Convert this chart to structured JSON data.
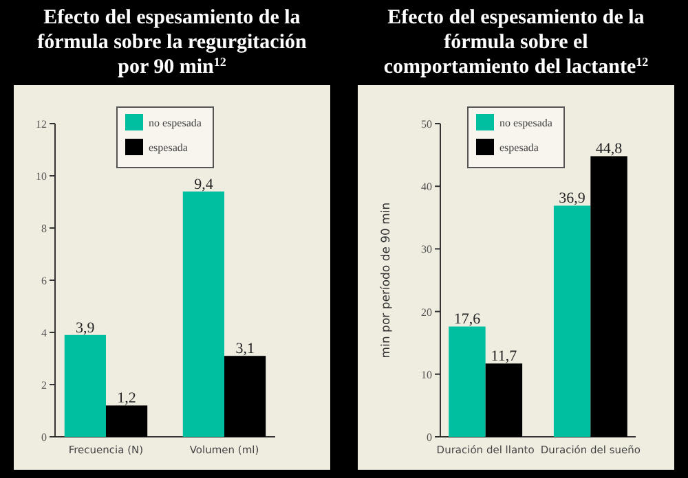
{
  "chart_data": [
    {
      "type": "bar",
      "title": "Efecto del espesamiento de la fórmula sobre la regurgitación por 90 min$^{12}$",
      "categories": [
        "Frecuencia (N)",
        "Volumen (ml)"
      ],
      "series": [
        {
          "name": "no espesada",
          "color": "#00bfa0",
          "values": [
            3.9,
            9.4
          ],
          "value_labels": [
            "3,9",
            "9,4"
          ]
        },
        {
          "name": "espesada",
          "color": "#000000",
          "values": [
            1.2,
            3.1
          ],
          "value_labels": [
            "1,2",
            "3,1"
          ]
        }
      ],
      "ylim": [
        0,
        12
      ],
      "yticks": [
        0,
        2,
        4,
        6,
        8,
        10,
        12
      ],
      "legend": "top left",
      "grid": false
    },
    {
      "type": "bar",
      "title": "Efecto del espesamiento de la fórmula sobre el comportamiento del lactante$^{12}$",
      "ylabel": "min por período de 90 min",
      "categories": [
        "Duración del llanto",
        "Duración del sueño"
      ],
      "series": [
        {
          "name": "no espesada",
          "color": "#00bfa0",
          "values": [
            17.6,
            36.9
          ],
          "value_labels": [
            "17,6",
            "36,9"
          ]
        },
        {
          "name": "espesada",
          "color": "#000000",
          "values": [
            11.7,
            44.8
          ],
          "value_labels": [
            "11,7",
            "44,8"
          ]
        }
      ],
      "ylim": [
        0,
        50
      ],
      "yticks": [
        0,
        10,
        20,
        30,
        40,
        50
      ],
      "legend": "top left",
      "grid": false
    }
  ]
}
